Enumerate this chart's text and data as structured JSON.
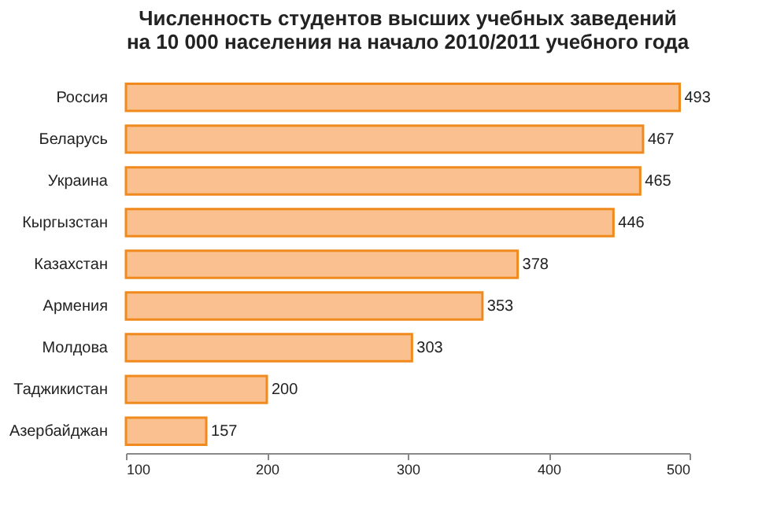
{
  "chart_data": {
    "type": "bar",
    "orientation": "horizontal",
    "title": "Численность студентов высших учебных заведений\nна 10 000 населения на начало 2010/2011 учебного года",
    "categories": [
      "Россия",
      "Беларусь",
      "Украина",
      "Кыргызстан",
      "Казахстан",
      "Армения",
      "Молдова",
      "Таджикистан",
      "Азербайджан"
    ],
    "values": [
      493,
      467,
      465,
      446,
      378,
      353,
      303,
      200,
      157
    ],
    "color": "#fac08f",
    "xlim": [
      100,
      500
    ],
    "xticks": [
      100,
      200,
      300,
      400,
      500
    ],
    "grid": false,
    "data_labels": true
  }
}
